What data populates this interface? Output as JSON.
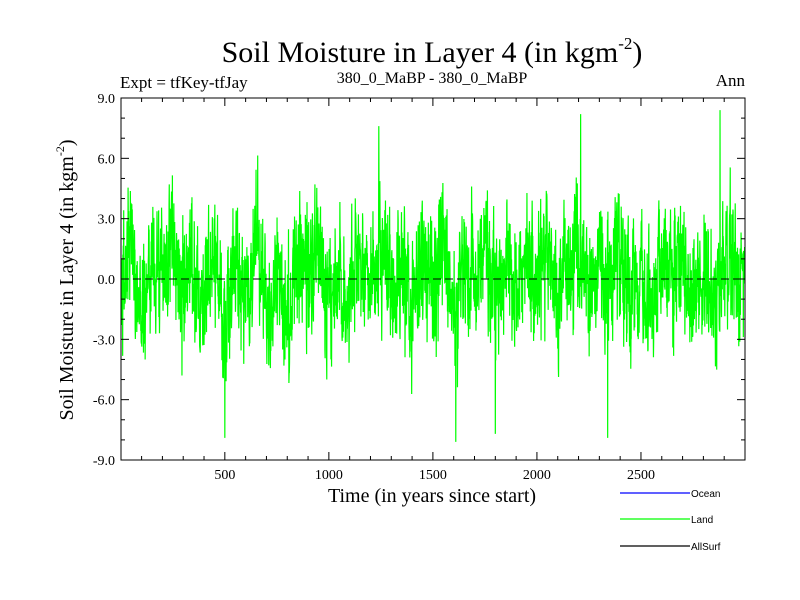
{
  "chart_data": {
    "type": "line",
    "title_main": "Soil Moisture in Layer 4 (in kgm",
    "title_sup": "-2",
    "title_close": ")",
    "subtitle_left": "Expt = tfKey-tfJay",
    "subtitle_center": "380_0_MaBP - 380_0_MaBP",
    "subtitle_right": "Ann",
    "xlabel": "Time (in years since start)",
    "ylabel_main": "Soil Moisture in Layer 4 (in kgm",
    "ylabel_sup": "-2",
    "ylabel_close": ")",
    "xlim": [
      1,
      3000
    ],
    "ylim": [
      -9.0,
      9.0
    ],
    "xticks": [
      500,
      1000,
      1500,
      2000,
      2500
    ],
    "xtick_labels": [
      "500",
      "1000",
      "1500",
      "2000",
      "2500"
    ],
    "yticks": [
      -9.0,
      -6.0,
      -3.0,
      0.0,
      3.0,
      6.0,
      9.0
    ],
    "ytick_labels": [
      "-9.0",
      "-6.0",
      "-3.0",
      "0.0",
      "3.0",
      "6.0",
      "9.0"
    ],
    "zero_line": {
      "y": 0.0,
      "style": "dashed",
      "color": "#000000"
    },
    "grid": false,
    "legend_position": "bottom-right",
    "series": [
      {
        "name": "Ocean",
        "color": "#0000ff",
        "x": [],
        "y": []
      },
      {
        "name": "Land",
        "color": "#00ff00",
        "x": [
          1,
          50,
          100,
          150,
          200,
          250,
          300,
          350,
          400,
          450,
          500,
          550,
          600,
          650,
          700,
          750,
          800,
          850,
          900,
          950,
          1000,
          1050,
          1100,
          1150,
          1200,
          1250,
          1300,
          1350,
          1400,
          1450,
          1500,
          1550,
          1600,
          1650,
          1700,
          1750,
          1800,
          1850,
          1900,
          1950,
          2000,
          2050,
          2100,
          2150,
          2200,
          2250,
          2300,
          2350,
          2400,
          2450,
          2500,
          2550,
          2600,
          2650,
          2700,
          2750,
          2800,
          2850,
          2900,
          2950,
          3000
        ],
        "y": [
          -1.2,
          2.8,
          -2.5,
          1.6,
          -0.4,
          3.1,
          -2.2,
          0.9,
          -1.7,
          2.1,
          -3.4,
          1.3,
          -0.8,
          2.5,
          -1.9,
          0.6,
          -2.4,
          1.8,
          -0.5,
          2.3,
          -1.6,
          0.4,
          -2.1,
          1.5,
          -0.7,
          2.6,
          -1.5,
          0.8,
          -2.0,
          1.9,
          -0.9,
          2.2,
          -2.6,
          1.1,
          -0.3,
          2.4,
          -2.0,
          1.0,
          -1.1,
          1.7,
          -0.6,
          2.0,
          -1.3,
          0.7,
          3.2,
          -2.3,
          1.2,
          -0.8,
          2.7,
          -1.8,
          0.5,
          -2.2,
          1.4,
          -0.2,
          2.1,
          -1.4,
          0.3,
          -2.5,
          1.6,
          -0.1,
          0.6
        ],
        "extremes": {
          "max": {
            "x": 2895,
            "y": 8.4
          },
          "min": {
            "x": 1610,
            "y": -8.1
          },
          "notable_peaks": [
            {
              "x": 1240,
              "y": 7.6
            },
            {
              "x": 2210,
              "y": 8.2
            },
            {
              "x": 2880,
              "y": 8.4
            }
          ],
          "notable_troughs": [
            {
              "x": 500,
              "y": -7.9
            },
            {
              "x": 1610,
              "y": -8.1
            },
            {
              "x": 1800,
              "y": -7.7
            },
            {
              "x": 2340,
              "y": -7.9
            }
          ]
        }
      },
      {
        "name": "AllSurf",
        "color": "#000000",
        "x": [],
        "y": []
      }
    ]
  }
}
